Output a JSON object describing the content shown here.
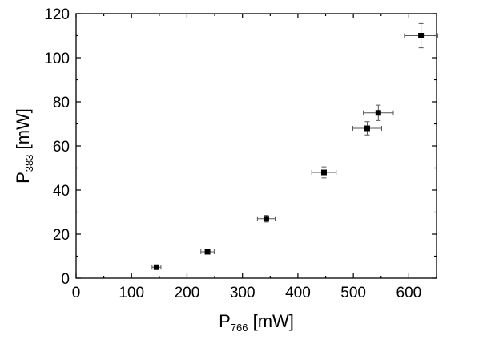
{
  "chart_data": {
    "type": "scatter",
    "xlabel": {
      "main": "P",
      "sub": "766",
      "unit": " [mW]"
    },
    "ylabel": {
      "main": "P",
      "sub": "383",
      "unit": " [mW]"
    },
    "xlim": [
      0,
      650
    ],
    "ylim": [
      0,
      120
    ],
    "x_ticks": [
      0,
      100,
      200,
      300,
      400,
      500,
      600
    ],
    "y_ticks": [
      0,
      20,
      40,
      60,
      80,
      100,
      120
    ],
    "grid": false,
    "marker": "square",
    "color": "#000000",
    "error_bar_color": "#555555",
    "points": [
      {
        "x": 145,
        "y": 5,
        "xerr": 8,
        "yerr": 1
      },
      {
        "x": 237,
        "y": 12,
        "xerr": 12,
        "yerr": 1
      },
      {
        "x": 343,
        "y": 27,
        "xerr": 16,
        "yerr": 1.5
      },
      {
        "x": 447,
        "y": 48,
        "xerr": 22,
        "yerr": 2.5
      },
      {
        "x": 525,
        "y": 68,
        "xerr": 26,
        "yerr": 3
      },
      {
        "x": 545,
        "y": 75,
        "xerr": 27,
        "yerr": 3.5
      },
      {
        "x": 622,
        "y": 110,
        "xerr": 30,
        "yerr": 5.5
      }
    ]
  }
}
